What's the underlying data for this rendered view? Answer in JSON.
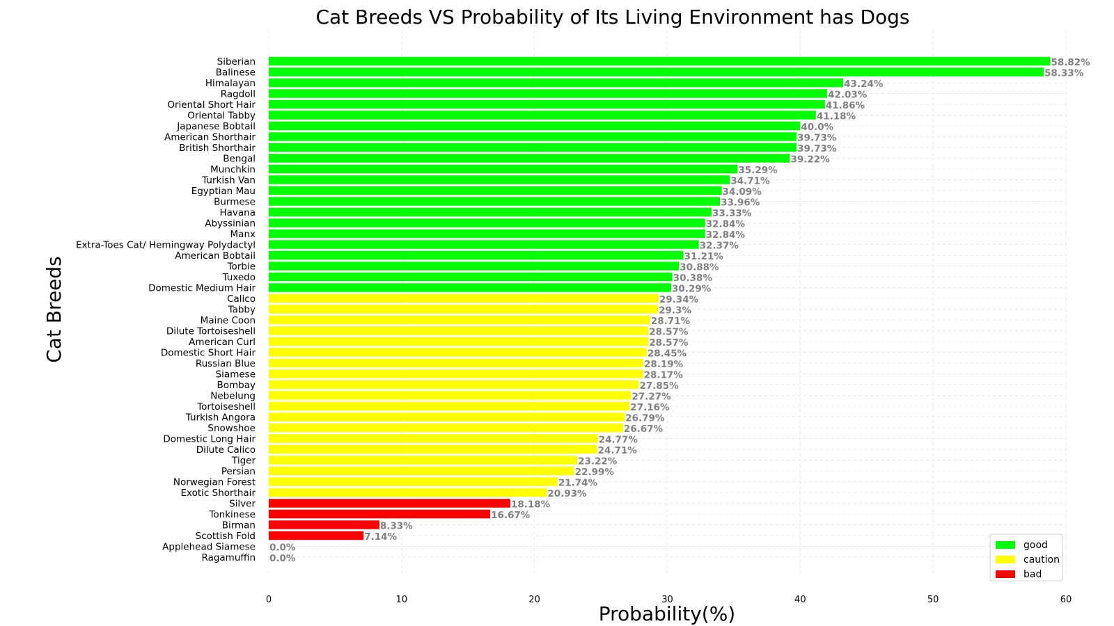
{
  "chart_data": {
    "type": "bar",
    "orientation": "horizontal",
    "title": "Cat Breeds VS Probability of Its Living Environment has Dogs",
    "xlabel": "Probability(%)",
    "ylabel": "Cat Breeds",
    "xlim": [
      0,
      60
    ],
    "xticks": [
      "0",
      "10",
      "20",
      "30",
      "40",
      "50",
      "60"
    ],
    "grid": true,
    "legend_placement": "bottom-right",
    "legend": [
      {
        "name": "good",
        "color": "#00ff00"
      },
      {
        "name": "caution",
        "color": "#ffff00"
      },
      {
        "name": "bad",
        "color": "#ff0000"
      }
    ],
    "categories": [
      "Siberian",
      "Balinese",
      "Himalayan",
      "Ragdoll",
      "Oriental Short Hair",
      "Oriental Tabby",
      "Japanese Bobtail",
      "American Shorthair",
      "British Shorthair",
      "Bengal",
      "Munchkin",
      "Turkish Van",
      "Egyptian Mau",
      "Burmese",
      "Havana",
      "Abyssinian",
      "Manx",
      "Extra-Toes Cat/ Hemingway Polydactyl",
      "American Bobtail",
      "Torbie",
      "Tuxedo",
      "Domestic Medium Hair",
      "Calico",
      "Tabby",
      "Maine Coon",
      "Dilute Tortoiseshell",
      "American Curl",
      "Domestic Short Hair",
      "Russian Blue",
      "Siamese",
      "Bombay",
      "Nebelung",
      "Tortoiseshell",
      "Turkish Angora",
      "Snowshoe",
      "Domestic Long Hair",
      "Dilute Calico",
      "Tiger",
      "Persian",
      "Norwegian Forest",
      "Exotic Shorthair",
      "Silver",
      "Tonkinese",
      "Birman",
      "Scottish Fold",
      "Applehead Siamese",
      "Ragamuffin"
    ],
    "values": [
      58.82,
      58.33,
      43.24,
      42.03,
      41.86,
      41.18,
      40.0,
      39.73,
      39.73,
      39.22,
      35.29,
      34.71,
      34.09,
      33.96,
      33.33,
      32.84,
      32.84,
      32.37,
      31.21,
      30.88,
      30.38,
      30.29,
      29.34,
      29.3,
      28.71,
      28.57,
      28.57,
      28.45,
      28.19,
      28.17,
      27.85,
      27.27,
      27.16,
      26.79,
      26.67,
      24.77,
      24.71,
      23.22,
      22.99,
      21.74,
      20.93,
      18.18,
      16.67,
      8.33,
      7.14,
      0.0,
      0.0
    ],
    "value_labels": [
      "58.82%",
      "58.33%",
      "43.24%",
      "42.03%",
      "41.86%",
      "41.18%",
      "40.0%",
      "39.73%",
      "39.73%",
      "39.22%",
      "35.29%",
      "34.71%",
      "34.09%",
      "33.96%",
      "33.33%",
      "32.84%",
      "32.84%",
      "32.37%",
      "31.21%",
      "30.88%",
      "30.38%",
      "30.29%",
      "29.34%",
      "29.3%",
      "28.71%",
      "28.57%",
      "28.57%",
      "28.45%",
      "28.19%",
      "28.17%",
      "27.85%",
      "27.27%",
      "27.16%",
      "26.79%",
      "26.67%",
      "24.77%",
      "24.71%",
      "23.22%",
      "22.99%",
      "21.74%",
      "20.93%",
      "18.18%",
      "16.67%",
      "8.33%",
      "7.14%",
      "0.0%",
      "0.0%"
    ],
    "groups": [
      "good",
      "good",
      "good",
      "good",
      "good",
      "good",
      "good",
      "good",
      "good",
      "good",
      "good",
      "good",
      "good",
      "good",
      "good",
      "good",
      "good",
      "good",
      "good",
      "good",
      "good",
      "good",
      "caution",
      "caution",
      "caution",
      "caution",
      "caution",
      "caution",
      "caution",
      "caution",
      "caution",
      "caution",
      "caution",
      "caution",
      "caution",
      "caution",
      "caution",
      "caution",
      "caution",
      "caution",
      "caution",
      "bad",
      "bad",
      "bad",
      "bad",
      "bad",
      "bad"
    ]
  }
}
